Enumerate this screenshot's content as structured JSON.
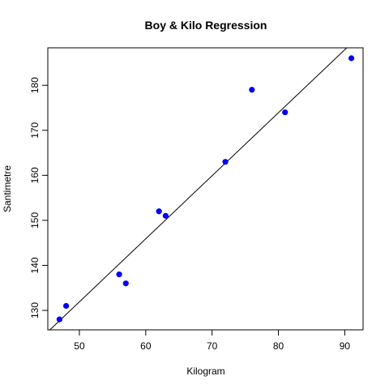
{
  "chart_data": {
    "type": "scatter",
    "title": "Boy & Kilo Regression",
    "xlabel": "Kilogram",
    "ylabel": "Santimetre",
    "xlim": [
      45.24,
      92.76
    ],
    "ylim": [
      125.68,
      188.32
    ],
    "x_ticks": [
      50,
      60,
      70,
      80,
      90
    ],
    "y_ticks": [
      130,
      140,
      150,
      160,
      170,
      180
    ],
    "grid": false,
    "legend": "none",
    "points": [
      {
        "x": 47,
        "y": 128
      },
      {
        "x": 48,
        "y": 131
      },
      {
        "x": 56,
        "y": 138
      },
      {
        "x": 57,
        "y": 136
      },
      {
        "x": 62,
        "y": 152
      },
      {
        "x": 63,
        "y": 151
      },
      {
        "x": 72,
        "y": 163
      },
      {
        "x": 76,
        "y": 179
      },
      {
        "x": 81,
        "y": 174
      },
      {
        "x": 91,
        "y": 186
      }
    ],
    "regression_line": {
      "intercept": 61.9,
      "slope": 1.4
    }
  },
  "colors": {
    "point": "#0000ff",
    "line": "#000000",
    "axis": "#000000"
  }
}
